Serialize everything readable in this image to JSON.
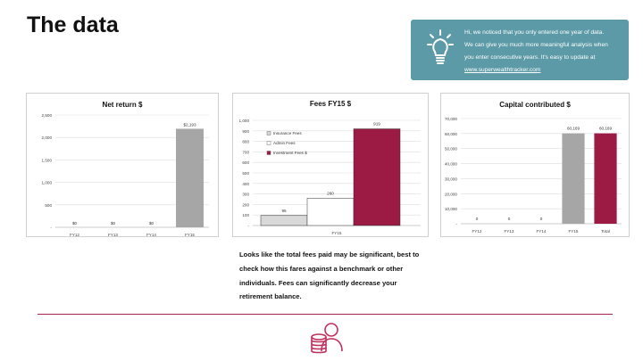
{
  "page": {
    "title": "The data",
    "tip": {
      "lines": [
        "Hi, we noticed that you only entered one year of data.",
        "We can give you much more meaningful analysis when",
        "you enter consecutive years. It's easy to update at"
      ],
      "link": "www.superwealthtracker.com",
      "icon": "lightbulb-icon"
    },
    "body_text": "Looks like the total fees paid may be significant, best to check how this fares against a benchmark or other individuals. Fees can significantly decrease your retirement balance.",
    "footer_icon": "coins-person-icon",
    "colors": {
      "accent": "#9b1b45",
      "tip_bg": "#5b9aa6",
      "grey": "#a6a6a6",
      "rule": "#a3224e"
    }
  },
  "chart_data": [
    {
      "type": "bar",
      "title": "Net return $",
      "categories": [
        "FY12",
        "FY13",
        "FY14",
        "FY15"
      ],
      "values": [
        0,
        0,
        0,
        2193
      ],
      "data_labels": [
        "$0",
        "$0",
        "$0",
        "$2,193"
      ],
      "yticks": [
        "-",
        "500",
        "1,000",
        "1,500",
        "2,000",
        "2,500"
      ],
      "ylim": [
        0,
        2500
      ],
      "grid": true,
      "colors": [
        "#a6a6a6"
      ]
    },
    {
      "type": "bar",
      "title": "Fees FY15 $",
      "categories": [
        "FY15"
      ],
      "series": [
        {
          "name": "Insurance Fees",
          "values": [
            95
          ],
          "color": "#d9d9d9"
        },
        {
          "name": "Admin Fees",
          "values": [
            260
          ],
          "color": "#ffffff"
        },
        {
          "name": "Investment Fees $",
          "values": [
            919
          ],
          "color": "#9b1b45"
        }
      ],
      "yticks": [
        "-",
        "100",
        "200",
        "300",
        "400",
        "500",
        "600",
        "700",
        "800",
        "900",
        "1,000"
      ],
      "ylim": [
        0,
        1000
      ],
      "grid": true,
      "legend": "top-left"
    },
    {
      "type": "bar",
      "title": "Capital contributed $",
      "categories": [
        "FY12",
        "FY13",
        "FY14",
        "FY15",
        "Total"
      ],
      "values": [
        0,
        0,
        0,
        60169,
        60169
      ],
      "data_labels": [
        "0",
        "0",
        "0",
        "60,169",
        "60,169"
      ],
      "bar_colors": [
        "#a6a6a6",
        "#a6a6a6",
        "#a6a6a6",
        "#a6a6a6",
        "#9b1b45"
      ],
      "yticks": [
        "-",
        "10,000",
        "20,000",
        "30,000",
        "40,000",
        "50,000",
        "60,000",
        "70,000"
      ],
      "ylim": [
        0,
        70000
      ],
      "grid": true
    }
  ]
}
